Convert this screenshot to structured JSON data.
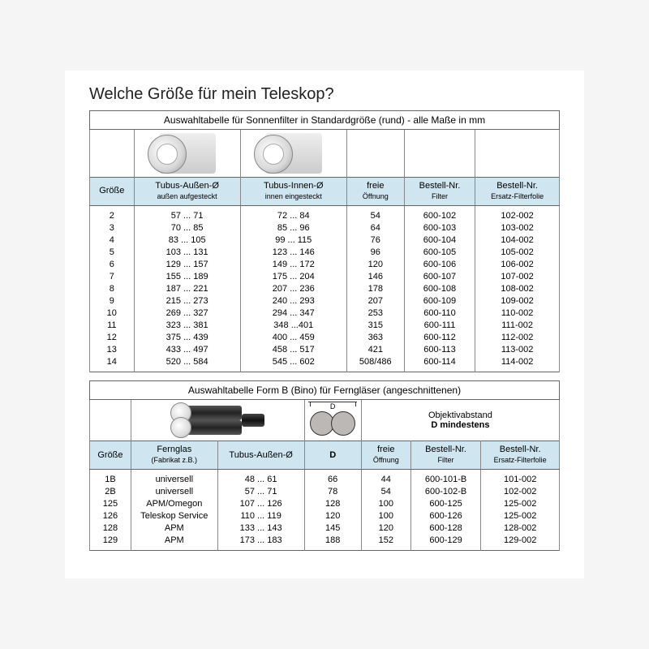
{
  "title": "Welche Größe für mein Teleskop?",
  "table1": {
    "caption": "Auswahltabelle für Sonnenfilter in Standardgröße (rund) - alle Maße in mm",
    "headers": {
      "size": "Größe",
      "outer": "Tubus-Außen-Ø",
      "outer_sub": "außen aufgesteckt",
      "inner": "Tubus-Innen-Ø",
      "inner_sub": "innen eingesteckt",
      "free": "freie",
      "free_sub": "Öffnung",
      "ordfilter": "Bestell-Nr.",
      "ordfilter_sub": "Filter",
      "ordfoil": "Bestell-Nr.",
      "ordfoil_sub": "Ersatz-Filterfolie"
    },
    "rows": [
      {
        "s": "2",
        "o": "57 ... 71",
        "i": "72 ... 84",
        "f": "54",
        "bf": "600-102",
        "bo": "102-002"
      },
      {
        "s": "3",
        "o": "70 ... 85",
        "i": "85 ... 96",
        "f": "64",
        "bf": "600-103",
        "bo": "103-002"
      },
      {
        "s": "4",
        "o": "83 ... 105",
        "i": "99 ... 115",
        "f": "76",
        "bf": "600-104",
        "bo": "104-002"
      },
      {
        "s": "5",
        "o": "103 ... 131",
        "i": "123 ... 146",
        "f": "96",
        "bf": "600-105",
        "bo": "105-002"
      },
      {
        "s": "6",
        "o": "129 ... 157",
        "i": "149 ... 172",
        "f": "120",
        "bf": "600-106",
        "bo": "106-002"
      },
      {
        "s": "7",
        "o": "155 ... 189",
        "i": "175 ... 204",
        "f": "146",
        "bf": "600-107",
        "bo": "107-002"
      },
      {
        "s": "8",
        "o": "187 ... 221",
        "i": "207 ... 236",
        "f": "178",
        "bf": "600-108",
        "bo": "108-002"
      },
      {
        "s": "9",
        "o": "215 ... 273",
        "i": "240 ... 293",
        "f": "207",
        "bf": "600-109",
        "bo": "109-002"
      },
      {
        "s": "10",
        "o": "269 ... 327",
        "i": "294 ... 347",
        "f": "253",
        "bf": "600-110",
        "bo": "110-002"
      },
      {
        "s": "11",
        "o": "323 ... 381",
        "i": "348 ...401",
        "f": "315",
        "bf": "600-111",
        "bo": "111-002"
      },
      {
        "s": "12",
        "o": "375 ... 439",
        "i": "400 ... 459",
        "f": "363",
        "bf": "600-112",
        "bo": "112-002"
      },
      {
        "s": "13",
        "o": "433 ... 497",
        "i": "458 ... 517",
        "f": "421",
        "bf": "600-113",
        "bo": "113-002"
      },
      {
        "s": "14",
        "o": "520 ... 584",
        "i": "545 ... 602",
        "f": "508/486",
        "bf": "600-114",
        "bo": "114-002"
      }
    ]
  },
  "table2": {
    "caption": "Auswahltabelle Form B (Bino) für Ferngläser  (angeschnittenen)",
    "obj_label_1": "Objektivabstand",
    "obj_label_2": "D mindestens",
    "d_letter": "D",
    "headers": {
      "size": "Größe",
      "bino": "Fernglas",
      "bino_sub": "(Fabrikat z.B.)",
      "outer": "Tubus-Außen-Ø",
      "d": "D",
      "free": "freie",
      "free_sub": "Öffnung",
      "ordfilter": "Bestell-Nr.",
      "ordfilter_sub": "Filter",
      "ordfoil": "Bestell-Nr.",
      "ordfoil_sub": "Ersatz-Filterfolie"
    },
    "rows": [
      {
        "s": "1B",
        "b": "universell",
        "o": "48 ... 61",
        "d": "66",
        "f": "44",
        "bf": "600-101-B",
        "bo": "101-002"
      },
      {
        "s": "2B",
        "b": "universell",
        "o": "57 ... 71",
        "d": "78",
        "f": "54",
        "bf": "600-102-B",
        "bo": "102-002"
      },
      {
        "s": "125",
        "b": "APM/Omegon",
        "o": "107 ... 126",
        "d": "128",
        "f": "100",
        "bf": "600-125",
        "bo": "125-002"
      },
      {
        "s": "126",
        "b": "Teleskop Service",
        "o": "110 ... 119",
        "d": "120",
        "f": "100",
        "bf": "600-126",
        "bo": "125-002"
      },
      {
        "s": "128",
        "b": "APM",
        "o": "133 ... 143",
        "d": "145",
        "f": "120",
        "bf": "600-128",
        "bo": "128-002"
      },
      {
        "s": "129",
        "b": "APM",
        "o": "173 ... 183",
        "d": "188",
        "f": "152",
        "bf": "600-129",
        "bo": "129-002"
      }
    ]
  }
}
